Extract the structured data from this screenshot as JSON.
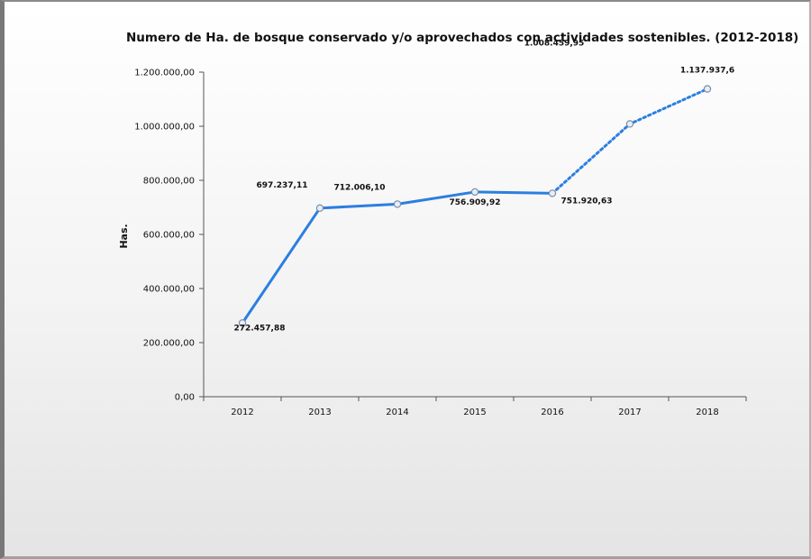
{
  "chart_data": {
    "type": "line",
    "title": "Numero de Ha. de bosque conservado y/o aprovechados con actividades sostenibles. (2012-2018)",
    "xlabel": "",
    "ylabel": "Has.",
    "categories": [
      "2012",
      "2013",
      "2014",
      "2015",
      "2016",
      "2017",
      "2018"
    ],
    "series": [
      {
        "values": [
          272457.88,
          697237.11,
          712006.1,
          756909.92,
          751920.63,
          1008459.95,
          1137937.6
        ],
        "data_labels": [
          "272.457,88",
          "697.237,11",
          "712.006,10",
          "756.909,92",
          "751.920,63",
          "1.008.459,95",
          "1.137.937,6"
        ],
        "line_color": "#2b7fe0",
        "solid_through": "2016",
        "dotted_from": "2016"
      }
    ],
    "ylim": [
      0,
      1200000
    ],
    "y_ticks": [
      0,
      200000,
      400000,
      600000,
      800000,
      1000000,
      1200000
    ],
    "y_tick_labels": [
      "0,00",
      "200.000,00",
      "400.000,00",
      "600.000,00",
      "800.000,00",
      "1.000.000,00",
      "1.200.000,00"
    ],
    "grid": false,
    "legend": "none"
  }
}
